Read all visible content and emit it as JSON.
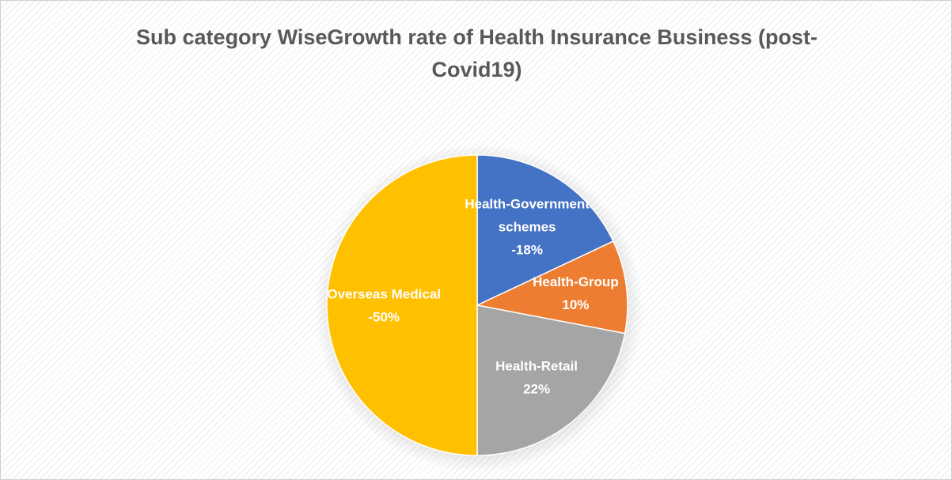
{
  "chart_data": {
    "type": "pie",
    "title": "Sub category WiseGrowth rate of Health Insurance Business (post-Covid19)",
    "title_lines": [
      "Sub category WiseGrowth rate of Health Insurance Business (post-",
      "Covid19)"
    ],
    "slices": [
      {
        "name": "Health-Government schemes",
        "label_lines": [
          "Health-Government",
          "schemes"
        ],
        "value": -18,
        "value_label": "-18%",
        "color": "#4472c4"
      },
      {
        "name": "Health-Group",
        "label_lines": [
          "Health-Group"
        ],
        "value": 10,
        "value_label": "10%",
        "color": "#ed7d31"
      },
      {
        "name": "Health-Retail",
        "label_lines": [
          "Health-Retail"
        ],
        "value": 22,
        "value_label": "22%",
        "color": "#a5a5a5"
      },
      {
        "name": "Overseas Medical",
        "label_lines": [
          "Overseas Medical"
        ],
        "value": -50,
        "value_label": "-50%",
        "color": "#ffc000"
      }
    ]
  }
}
